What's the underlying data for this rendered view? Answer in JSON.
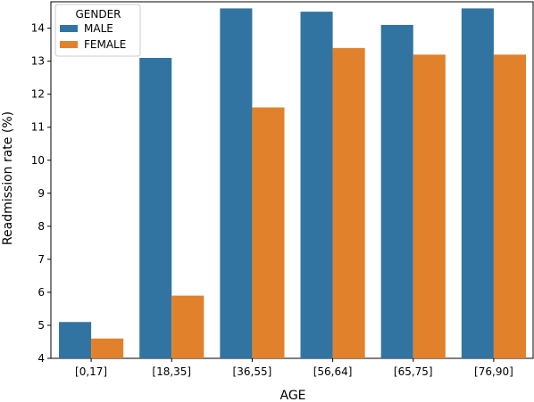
{
  "chart_data": {
    "type": "bar",
    "title": "",
    "xlabel": "AGE",
    "ylabel": "Readmission rate (%)",
    "ylim": [
      4,
      14.8
    ],
    "yticks": [
      4,
      5,
      6,
      7,
      8,
      9,
      10,
      11,
      12,
      13,
      14
    ],
    "categories": [
      "[0,17]",
      "[18,35]",
      "[36,55]",
      "[56,64]",
      "[65,75]",
      "[76,90]"
    ],
    "series": [
      {
        "name": "MALE",
        "color": "#3274a1",
        "values": [
          5.1,
          13.1,
          14.6,
          14.5,
          14.1,
          14.6
        ]
      },
      {
        "name": "FEMALE",
        "color": "#e1812c",
        "values": [
          4.6,
          5.9,
          11.6,
          13.4,
          13.2,
          13.2
        ]
      }
    ],
    "legend": {
      "title": "GENDER",
      "placement": "top-left"
    },
    "grid": false
  }
}
